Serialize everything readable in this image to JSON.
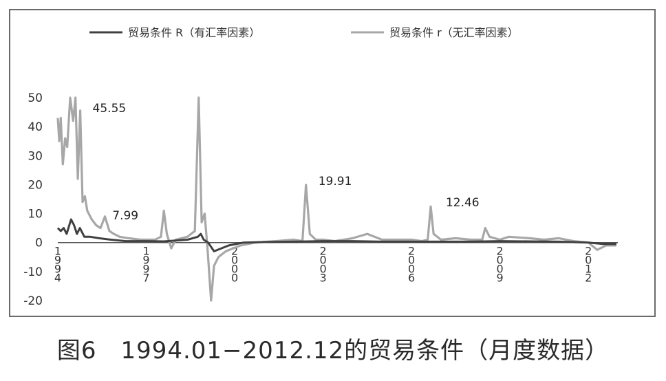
{
  "caption": "图6　1994.01−2012.12的贸易条件（月度数据）",
  "chart_data": {
    "type": "line",
    "title": "",
    "xlabel": "",
    "ylabel": "",
    "ylim": [
      -20,
      50
    ],
    "yticks": [
      50,
      40,
      30,
      20,
      10,
      0,
      -10,
      -20
    ],
    "xlim": [
      1994.0,
      2013.0
    ],
    "xticks": [
      {
        "x": 1994.0,
        "label": "1994"
      },
      {
        "x": 1997.0,
        "label": "1997"
      },
      {
        "x": 2000.0,
        "label": "2000"
      },
      {
        "x": 2003.0,
        "label": "2003"
      },
      {
        "x": 2006.0,
        "label": "2006"
      },
      {
        "x": 2009.0,
        "label": "2009"
      },
      {
        "x": 2012.0,
        "label": "2012"
      }
    ],
    "grid": false,
    "legend_position": "top",
    "series": [
      {
        "name": "贸易条件 R（有汇率因素）",
        "color": "#404040",
        "points": [
          [
            1994.0,
            5
          ],
          [
            1994.1,
            4
          ],
          [
            1994.2,
            5
          ],
          [
            1994.3,
            3
          ],
          [
            1994.45,
            7.99
          ],
          [
            1994.55,
            6
          ],
          [
            1994.65,
            3
          ],
          [
            1994.75,
            5
          ],
          [
            1994.9,
            2
          ],
          [
            1995.1,
            2
          ],
          [
            1995.4,
            1.5
          ],
          [
            1995.8,
            1
          ],
          [
            1996.3,
            0.5
          ],
          [
            1997.0,
            0.5
          ],
          [
            1997.6,
            0.4
          ],
          [
            1998.4,
            1
          ],
          [
            1998.75,
            2
          ],
          [
            1998.85,
            3
          ],
          [
            1998.95,
            1
          ],
          [
            1999.1,
            0
          ],
          [
            1999.3,
            -3
          ],
          [
            1999.55,
            -2
          ],
          [
            1999.8,
            -1
          ],
          [
            2000.3,
            0
          ],
          [
            2001.0,
            0.2
          ],
          [
            2002.0,
            0.3
          ],
          [
            2003.0,
            0.5
          ],
          [
            2004.0,
            0.5
          ],
          [
            2005.0,
            0.3
          ],
          [
            2006.0,
            0.3
          ],
          [
            2007.0,
            0.3
          ],
          [
            2008.0,
            0.3
          ],
          [
            2009.0,
            0.5
          ],
          [
            2010.0,
            0.4
          ],
          [
            2011.0,
            0.3
          ],
          [
            2012.0,
            0
          ],
          [
            2012.5,
            -0.5
          ],
          [
            2012.95,
            -0.5
          ]
        ]
      },
      {
        "name": "贸易条件 r（无汇率因素）",
        "color": "#a7a7a7",
        "points": [
          [
            1994.0,
            43
          ],
          [
            1994.05,
            35
          ],
          [
            1994.1,
            43
          ],
          [
            1994.17,
            27
          ],
          [
            1994.25,
            36
          ],
          [
            1994.32,
            33
          ],
          [
            1994.42,
            50
          ],
          [
            1994.52,
            42
          ],
          [
            1994.6,
            50
          ],
          [
            1994.68,
            22
          ],
          [
            1994.76,
            45.55
          ],
          [
            1994.84,
            14
          ],
          [
            1994.92,
            16
          ],
          [
            1995.0,
            11
          ],
          [
            1995.15,
            8
          ],
          [
            1995.3,
            6
          ],
          [
            1995.45,
            5
          ],
          [
            1995.6,
            9
          ],
          [
            1995.75,
            4
          ],
          [
            1995.9,
            3
          ],
          [
            1996.1,
            2
          ],
          [
            1996.4,
            1.5
          ],
          [
            1996.8,
            1
          ],
          [
            1997.1,
            1
          ],
          [
            1997.3,
            1
          ],
          [
            1997.5,
            2
          ],
          [
            1997.6,
            11
          ],
          [
            1997.7,
            3
          ],
          [
            1997.85,
            -2
          ],
          [
            1998.0,
            1
          ],
          [
            1998.4,
            2
          ],
          [
            1998.65,
            4
          ],
          [
            1998.78,
            50
          ],
          [
            1998.88,
            7
          ],
          [
            1998.98,
            10
          ],
          [
            1999.08,
            -2
          ],
          [
            1999.2,
            -20
          ],
          [
            1999.3,
            -8
          ],
          [
            1999.45,
            -5
          ],
          [
            1999.7,
            -3
          ],
          [
            2000.2,
            -1
          ],
          [
            2000.7,
            0
          ],
          [
            2001.4,
            0.5
          ],
          [
            2002.0,
            1
          ],
          [
            2002.3,
            0.5
          ],
          [
            2002.42,
            19.91
          ],
          [
            2002.55,
            3
          ],
          [
            2002.75,
            1
          ],
          [
            2003.0,
            1
          ],
          [
            2003.4,
            0.5
          ],
          [
            2004.0,
            1.5
          ],
          [
            2004.5,
            3
          ],
          [
            2005.0,
            1
          ],
          [
            2005.5,
            1
          ],
          [
            2006.0,
            1
          ],
          [
            2006.35,
            0.5
          ],
          [
            2006.55,
            1
          ],
          [
            2006.65,
            12.46
          ],
          [
            2006.75,
            3
          ],
          [
            2007.0,
            1
          ],
          [
            2007.5,
            1.5
          ],
          [
            2008.0,
            1
          ],
          [
            2008.4,
            1
          ],
          [
            2008.5,
            5
          ],
          [
            2008.65,
            2
          ],
          [
            2009.0,
            1
          ],
          [
            2009.3,
            2
          ],
          [
            2010.0,
            1.5
          ],
          [
            2010.5,
            1
          ],
          [
            2011.0,
            1.5
          ],
          [
            2011.5,
            0.5
          ],
          [
            2012.0,
            0
          ],
          [
            2012.3,
            -2.5
          ],
          [
            2012.6,
            -1
          ],
          [
            2012.95,
            -1
          ]
        ]
      }
    ],
    "annotations": [
      {
        "text": "45.55",
        "x": 1994.76,
        "y": 45.55,
        "dx": 18,
        "dy": 2
      },
      {
        "text": "7.99",
        "x": 1994.45,
        "y": 7.99,
        "dx": 60,
        "dy": 0
      },
      {
        "text": "19.91",
        "x": 2002.42,
        "y": 19.91,
        "dx": 18,
        "dy": 0
      },
      {
        "text": "12.46",
        "x": 2006.65,
        "y": 12.46,
        "dx": 22,
        "dy": 0
      }
    ]
  }
}
